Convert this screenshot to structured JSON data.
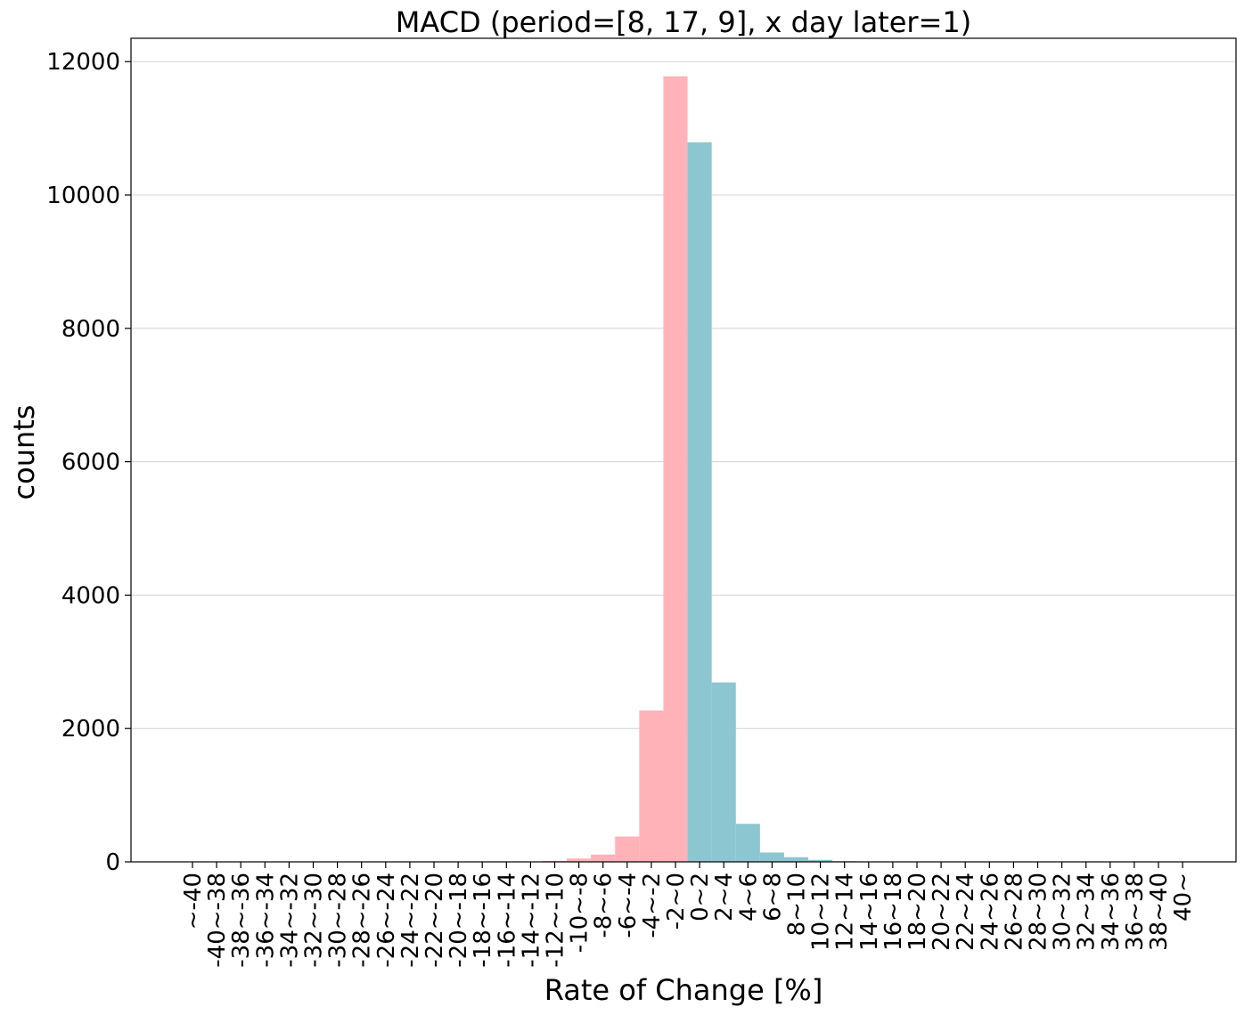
{
  "chart_data": {
    "type": "bar",
    "title": "MACD (period=[8, 17, 9], x day later=1)",
    "xlabel": "Rate of Change [%]",
    "ylabel": "counts",
    "ylim": [
      0,
      12350
    ],
    "yticks": [
      0,
      2000,
      4000,
      6000,
      8000,
      10000,
      12000
    ],
    "grid": "y",
    "categories": [
      "~-40",
      "-40~-38",
      "-38~-36",
      "-36~-34",
      "-34~-32",
      "-32~-30",
      "-30~-28",
      "-28~-26",
      "-26~-24",
      "-24~-22",
      "-22~-20",
      "-20~-18",
      "-18~-16",
      "-16~-14",
      "-14~-12",
      "-12~-10",
      "-10~-8",
      "-8~-6",
      "-6~-4",
      "-4~-2",
      "-2~0",
      "0~2",
      "2~4",
      "4~6",
      "6~8",
      "8~10",
      "10~12",
      "12~14",
      "14~16",
      "16~18",
      "18~20",
      "20~22",
      "22~24",
      "24~26",
      "26~28",
      "28~30",
      "30~32",
      "32~34",
      "34~36",
      "36~38",
      "38~40",
      "40~"
    ],
    "series": [
      {
        "color": "#ffb3b8",
        "values": [
          1,
          0,
          0,
          0,
          0,
          0,
          0,
          0,
          0,
          0,
          1,
          1,
          2,
          3,
          5,
          15,
          50,
          110,
          380,
          2270,
          11780,
          0,
          0,
          0,
          0,
          0,
          0,
          0,
          0,
          0,
          0,
          0,
          0,
          0,
          0,
          0,
          0,
          0,
          0,
          0,
          0,
          0
        ]
      },
      {
        "color": "#8cc6d0",
        "values": [
          0,
          0,
          0,
          0,
          0,
          0,
          0,
          0,
          0,
          0,
          0,
          0,
          0,
          0,
          0,
          0,
          0,
          0,
          0,
          0,
          0,
          10790,
          2690,
          570,
          140,
          70,
          30,
          10,
          5,
          3,
          2,
          1,
          1,
          0,
          0,
          0,
          0,
          0,
          0,
          0,
          0,
          1
        ]
      }
    ]
  }
}
